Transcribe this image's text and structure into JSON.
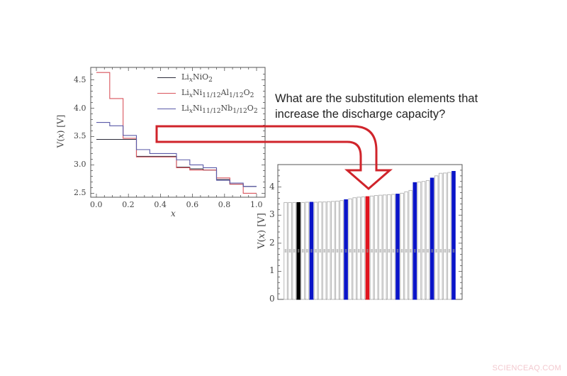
{
  "question": {
    "line1": "What are the substitution elements that",
    "line2": "increase the discharge capacity?"
  },
  "watermark": "SCIENCEAQ.COM",
  "colors": {
    "arrow": "#d0242b",
    "series_LiNiO2": "#2b2b3a",
    "series_Al": "#d9545c",
    "series_Nb": "#5a5aa8",
    "bar_highlight_black": "#000000",
    "bar_highlight_red": "#e0141e",
    "bar_highlight_blue": "#0a14c8",
    "bar_plain_fill": "#ffffff",
    "bar_plain_edge": "#b8b8b8"
  },
  "chart_data": [
    {
      "type": "line",
      "subtype": "step",
      "title": "",
      "xlabel": "x",
      "ylabel": "V(x) [V]",
      "xlim": [
        0.0,
        1.0
      ],
      "ylim": [
        2.43,
        4.72
      ],
      "xticks": [
        "0.0",
        "0.2",
        "0.4",
        "0.6",
        "0.8",
        "1.0"
      ],
      "yticks": [
        "2.5",
        "3.0",
        "3.5",
        "4.0",
        "4.5"
      ],
      "legend_position": "upper right",
      "series": [
        {
          "name": "LixNiO2",
          "label_html": "Li<sub><i>x</i></sub>NiO<sub>2</sub>",
          "x_edges": [
            0.0,
            0.25,
            0.5,
            0.5833,
            0.6667,
            0.75,
            0.8333,
            0.9167,
            1.0
          ],
          "values": [
            3.45,
            3.15,
            2.96,
            2.93,
            2.91,
            2.74,
            2.66,
            2.62
          ]
        },
        {
          "name": "LixNi11/12Al1/12O2",
          "label_html": "Li<sub><i>x</i></sub>Ni<sub>11/12</sub>Al<sub>1/12</sub>O<sub>2</sub>",
          "x_edges": [
            0.0,
            0.0833,
            0.1667,
            0.25,
            0.5,
            0.5833,
            0.6667,
            0.75,
            0.8333,
            0.9167,
            1.0
          ],
          "values": [
            4.63,
            4.17,
            3.47,
            3.14,
            2.95,
            2.91,
            2.91,
            2.77,
            2.66,
            2.5
          ]
        },
        {
          "name": "LixNi11/12Nb1/12O2",
          "label_html": "Li<sub><i>x</i></sub>Ni<sub>11/12</sub>Nb<sub>1/12</sub>O<sub>2</sub>",
          "x_edges": [
            0.0,
            0.0833,
            0.1667,
            0.25,
            0.3333,
            0.5,
            0.5833,
            0.6667,
            0.75,
            0.8333,
            0.9167,
            1.0
          ],
          "values": [
            3.75,
            3.69,
            3.52,
            3.27,
            3.2,
            3.09,
            3.0,
            2.95,
            2.73,
            2.68,
            2.62
          ]
        }
      ]
    },
    {
      "type": "bar",
      "title": "",
      "xlabel": "",
      "ylabel": "V(x) [V]",
      "ylim": [
        0,
        4.8
      ],
      "yticks": [
        "0",
        "1",
        "2",
        "3",
        "4"
      ],
      "grid": false,
      "category_labels_note": "rotated element symbols, illegible at this resolution",
      "values": [
        3.45,
        3.45,
        3.45,
        3.45,
        3.45,
        3.46,
        3.46,
        3.46,
        3.47,
        3.47,
        3.48,
        3.49,
        3.5,
        3.52,
        3.55,
        3.58,
        3.62,
        3.64,
        3.65,
        3.66,
        3.68,
        3.7,
        3.71,
        3.72,
        3.73,
        3.74,
        3.75,
        3.78,
        3.83,
        3.88,
        4.16,
        4.18,
        4.2,
        4.23,
        4.32,
        4.4,
        4.49,
        4.5,
        4.52,
        4.56
      ],
      "highlight": [
        "none",
        "none",
        "none",
        "black",
        "none",
        "none",
        "blue",
        "none",
        "none",
        "none",
        "none",
        "none",
        "none",
        "none",
        "blue",
        "none",
        "none",
        "none",
        "none",
        "red",
        "none",
        "none",
        "none",
        "none",
        "none",
        "none",
        "blue",
        "none",
        "none",
        "none",
        "blue",
        "none",
        "none",
        "none",
        "blue",
        "none",
        "none",
        "none",
        "none",
        "blue"
      ]
    }
  ]
}
